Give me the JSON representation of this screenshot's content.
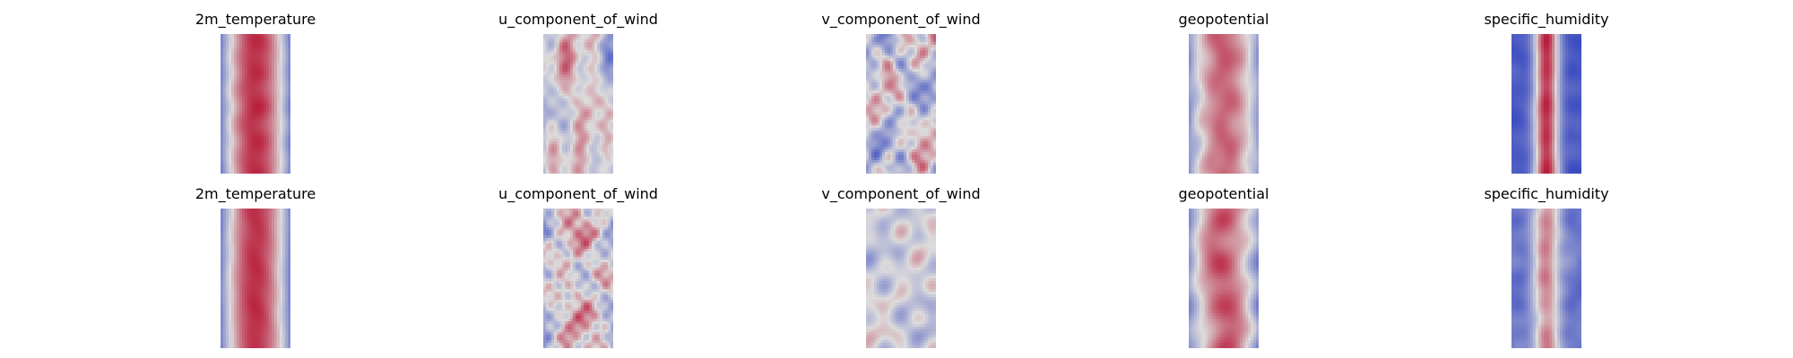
{
  "figure": {
    "rows": [
      {
        "panels": [
          {
            "title": "2m_temperature",
            "field": "temperature",
            "seed": 11
          },
          {
            "title": "u_component_of_wind",
            "field": "wind_u",
            "seed": 23
          },
          {
            "title": "v_component_of_wind",
            "field": "wind_v",
            "seed": 37
          },
          {
            "title": "geopotential",
            "field": "geopotential",
            "seed": 41
          },
          {
            "title": "specific_humidity",
            "field": "humidity",
            "seed": 53
          }
        ]
      },
      {
        "panels": [
          {
            "title": "2m_temperature",
            "field": "temperature",
            "seed": 67
          },
          {
            "title": "u_component_of_wind",
            "field": "wind_u",
            "seed": 71
          },
          {
            "title": "v_component_of_wind",
            "field": "wind_v",
            "seed": 83
          },
          {
            "title": "geopotential",
            "field": "geopotential",
            "seed": 97
          },
          {
            "title": "specific_humidity",
            "field": "humidity_smooth",
            "seed": 101
          }
        ]
      }
    ],
    "colormap": "coolwarm",
    "colors": {
      "cold": "#3b4cc0",
      "neutral": "#dddcdc",
      "warm": "#b40426"
    }
  }
}
